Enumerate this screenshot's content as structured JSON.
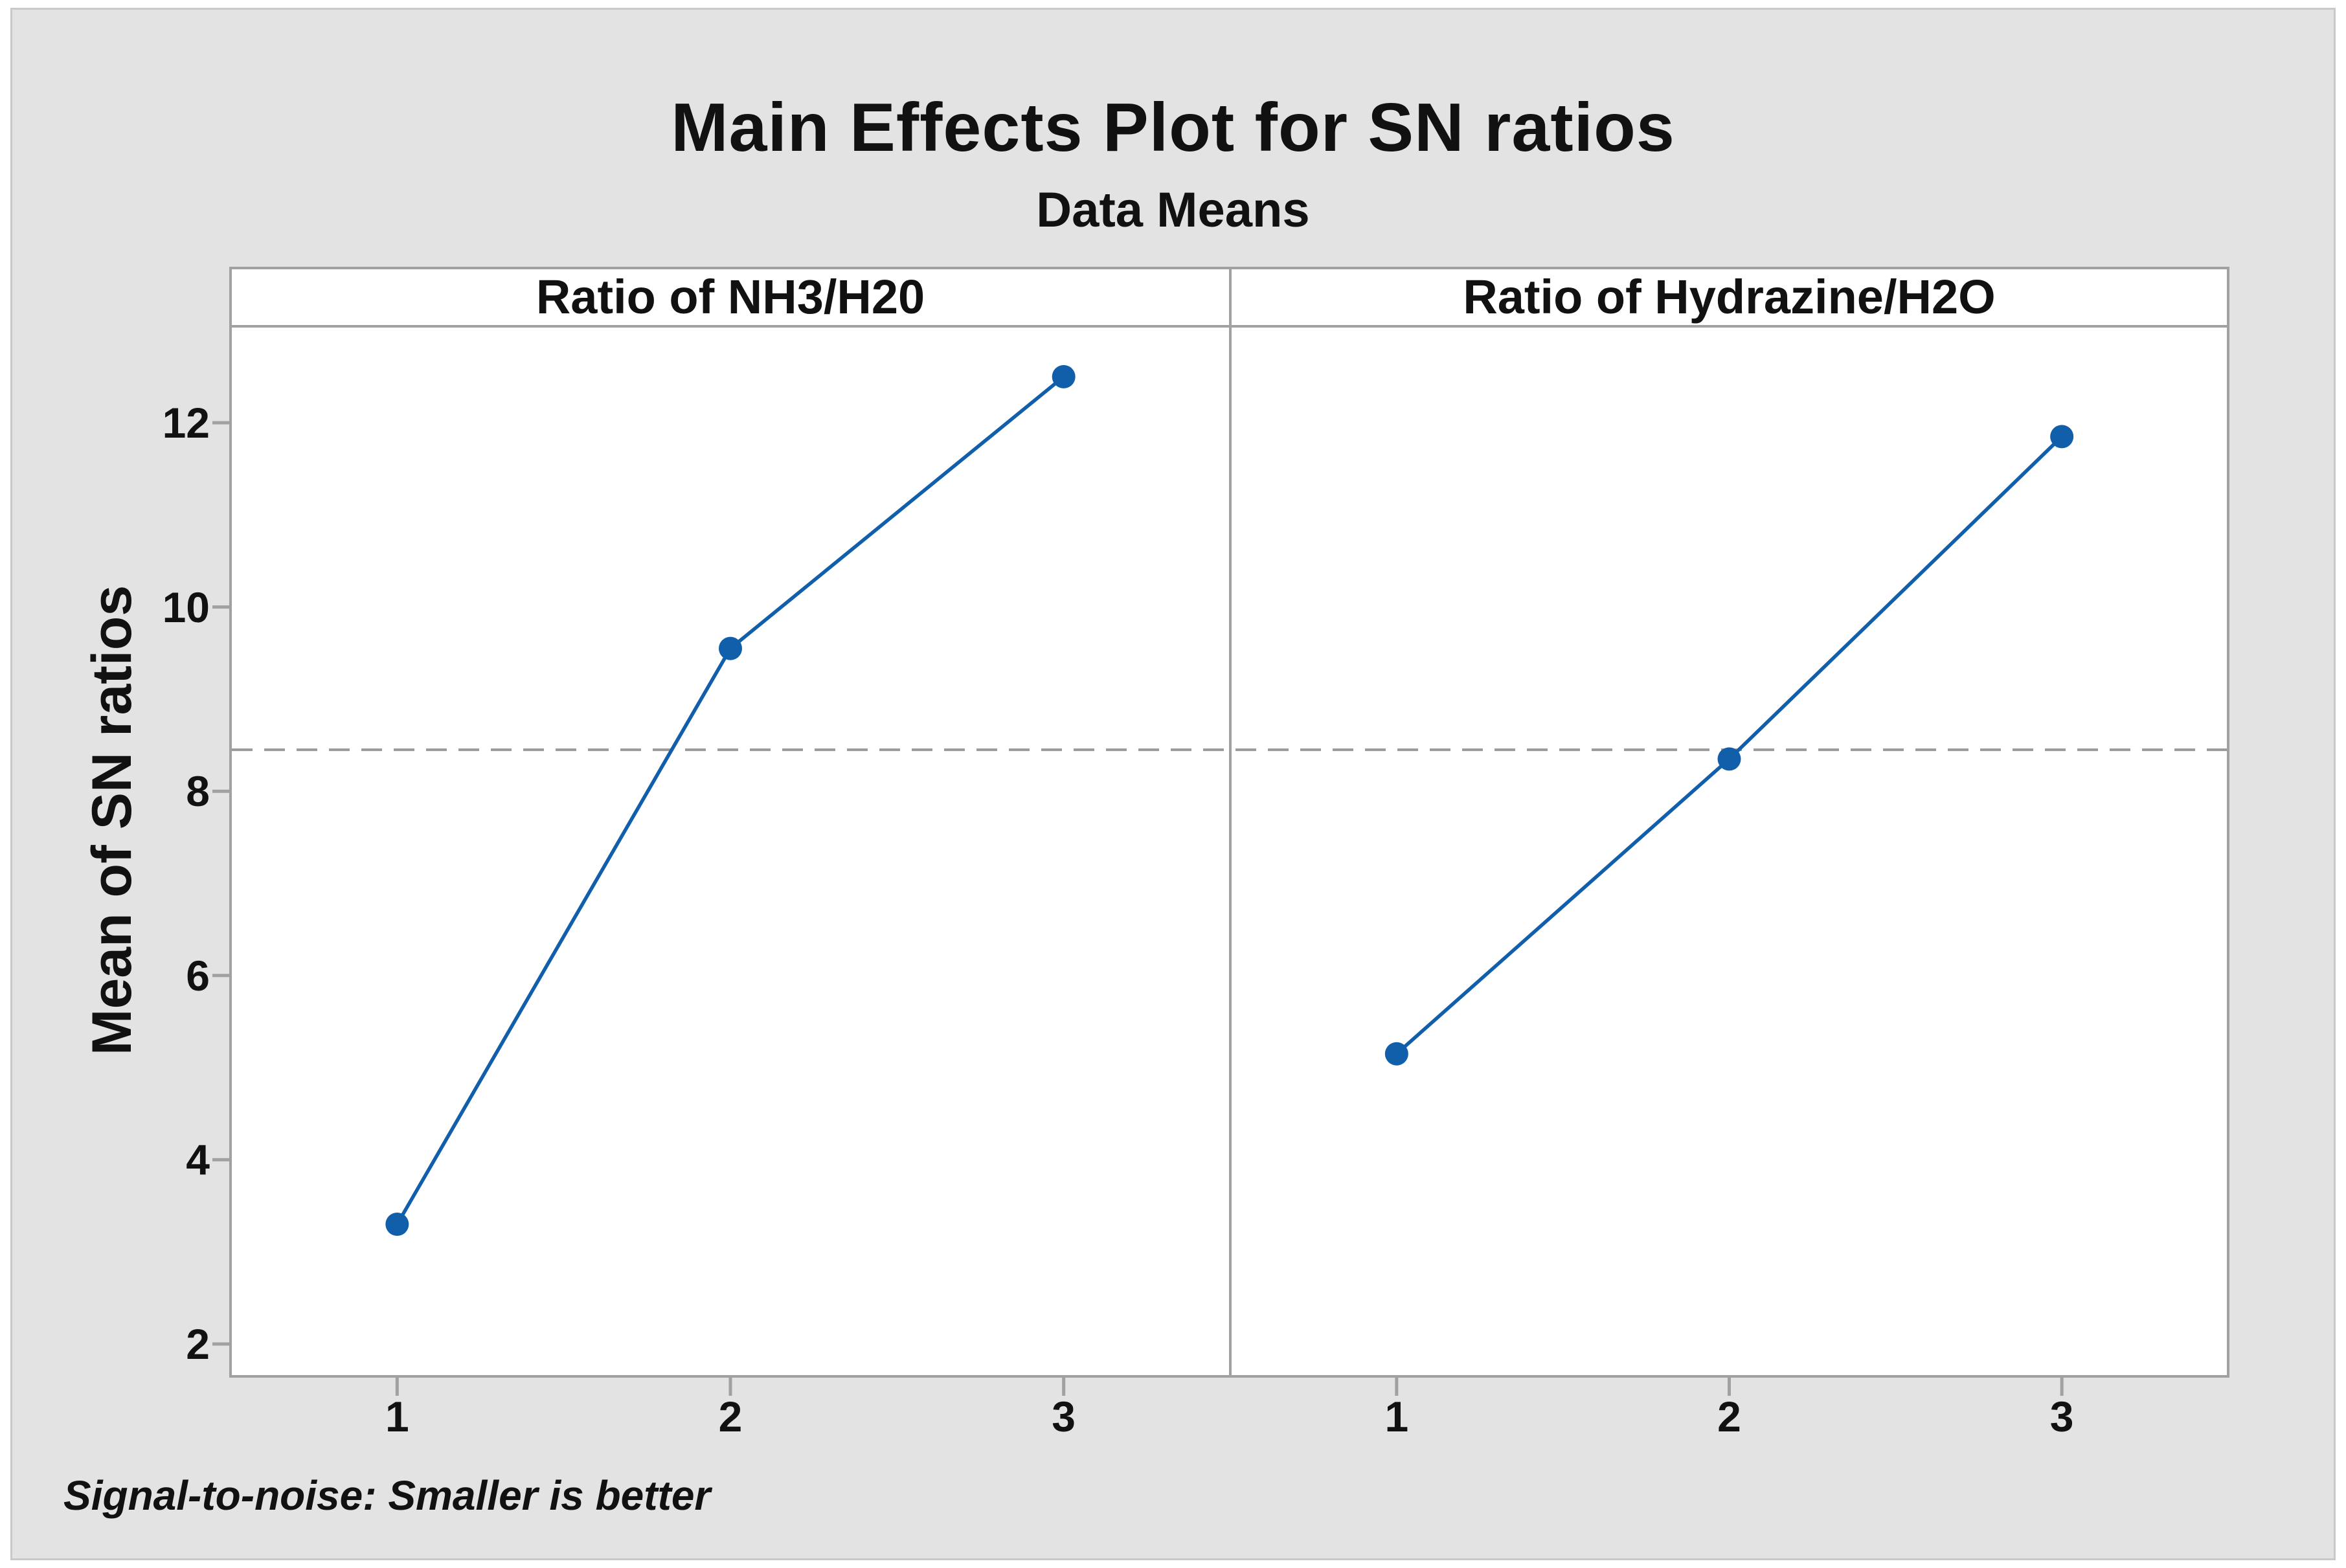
{
  "chart_data": {
    "type": "line",
    "title": "Main Effects Plot for SN ratios",
    "subtitle": "Data Means",
    "ylabel": "Mean of SN ratios",
    "footnote": "Signal-to-noise: Smaller is better",
    "ylim": [
      1.65,
      13.05
    ],
    "yticks": [
      2,
      4,
      6,
      8,
      10,
      12
    ],
    "xticks": [
      "1",
      "2",
      "3"
    ],
    "reference_mean": 8.45,
    "reference_line_style": "dashed",
    "legend": "none",
    "grid": "off",
    "panels": [
      {
        "label": "Ratio of NH3/H20",
        "categories": [
          "1",
          "2",
          "3"
        ],
        "values": [
          3.3,
          9.55,
          12.5
        ]
      },
      {
        "label": "Ratio of Hydrazine/H2O",
        "categories": [
          "1",
          "2",
          "3"
        ],
        "values": [
          5.15,
          8.35,
          11.85
        ]
      }
    ],
    "colors": {
      "series_blue": "#115FAB",
      "reference_gray": "#999999",
      "panel_border_gray": "#A1A1A1",
      "figure_background": "#E3E3E3",
      "plot_background": "#FFFFFF",
      "text": "#111111"
    }
  }
}
